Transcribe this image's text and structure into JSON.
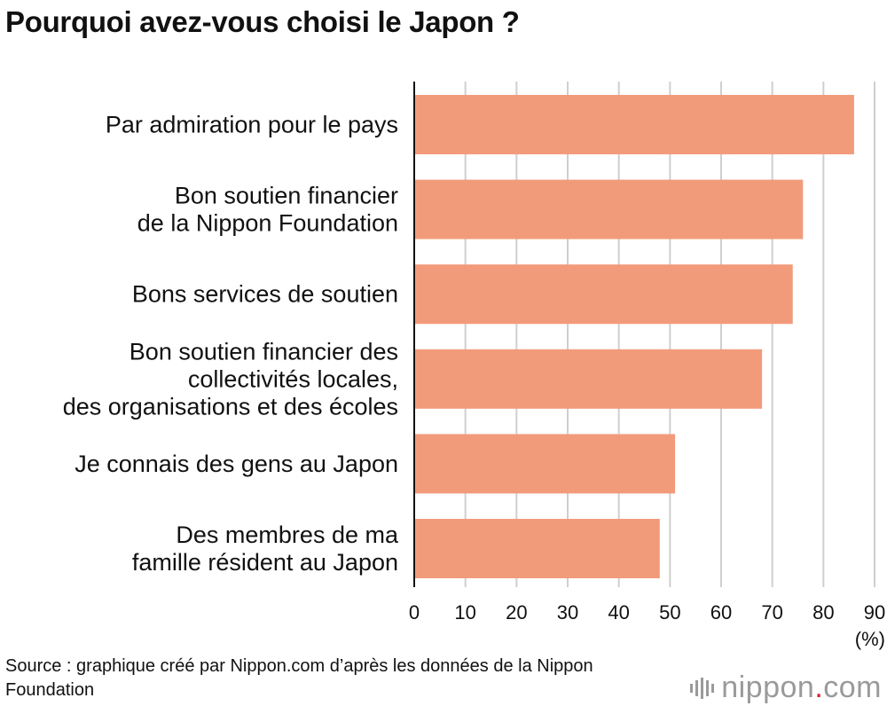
{
  "title": "Pourquoi avez-vous choisi le Japon ?",
  "chart_data": {
    "type": "bar",
    "orientation": "horizontal",
    "title": "Pourquoi avez-vous choisi le Japon ?",
    "categories": [
      [
        "Par admiration pour le pays"
      ],
      [
        "Bon soutien financier",
        "de la Nippon Foundation"
      ],
      [
        "Bons services de soutien"
      ],
      [
        "Bon soutien financier des",
        "collectivités locales,",
        "des organisations et des écoles"
      ],
      [
        "Je connais des gens au Japon"
      ],
      [
        "Des membres de ma",
        "famille résident au Japon"
      ]
    ],
    "values": [
      86,
      76,
      74,
      68,
      51,
      48
    ],
    "xlim": [
      0,
      90
    ],
    "xticks": [
      0,
      10,
      20,
      30,
      40,
      50,
      60,
      70,
      80,
      90
    ],
    "xlabel": "(%)",
    "ylabel": "",
    "grid": true,
    "bar_color": "#f29b7b"
  },
  "source": "Source : graphique créé par Nippon.com d’après les données de la Nippon Foundation",
  "logo": {
    "name": "nippon",
    "dot": ".",
    "suffix": "com"
  }
}
